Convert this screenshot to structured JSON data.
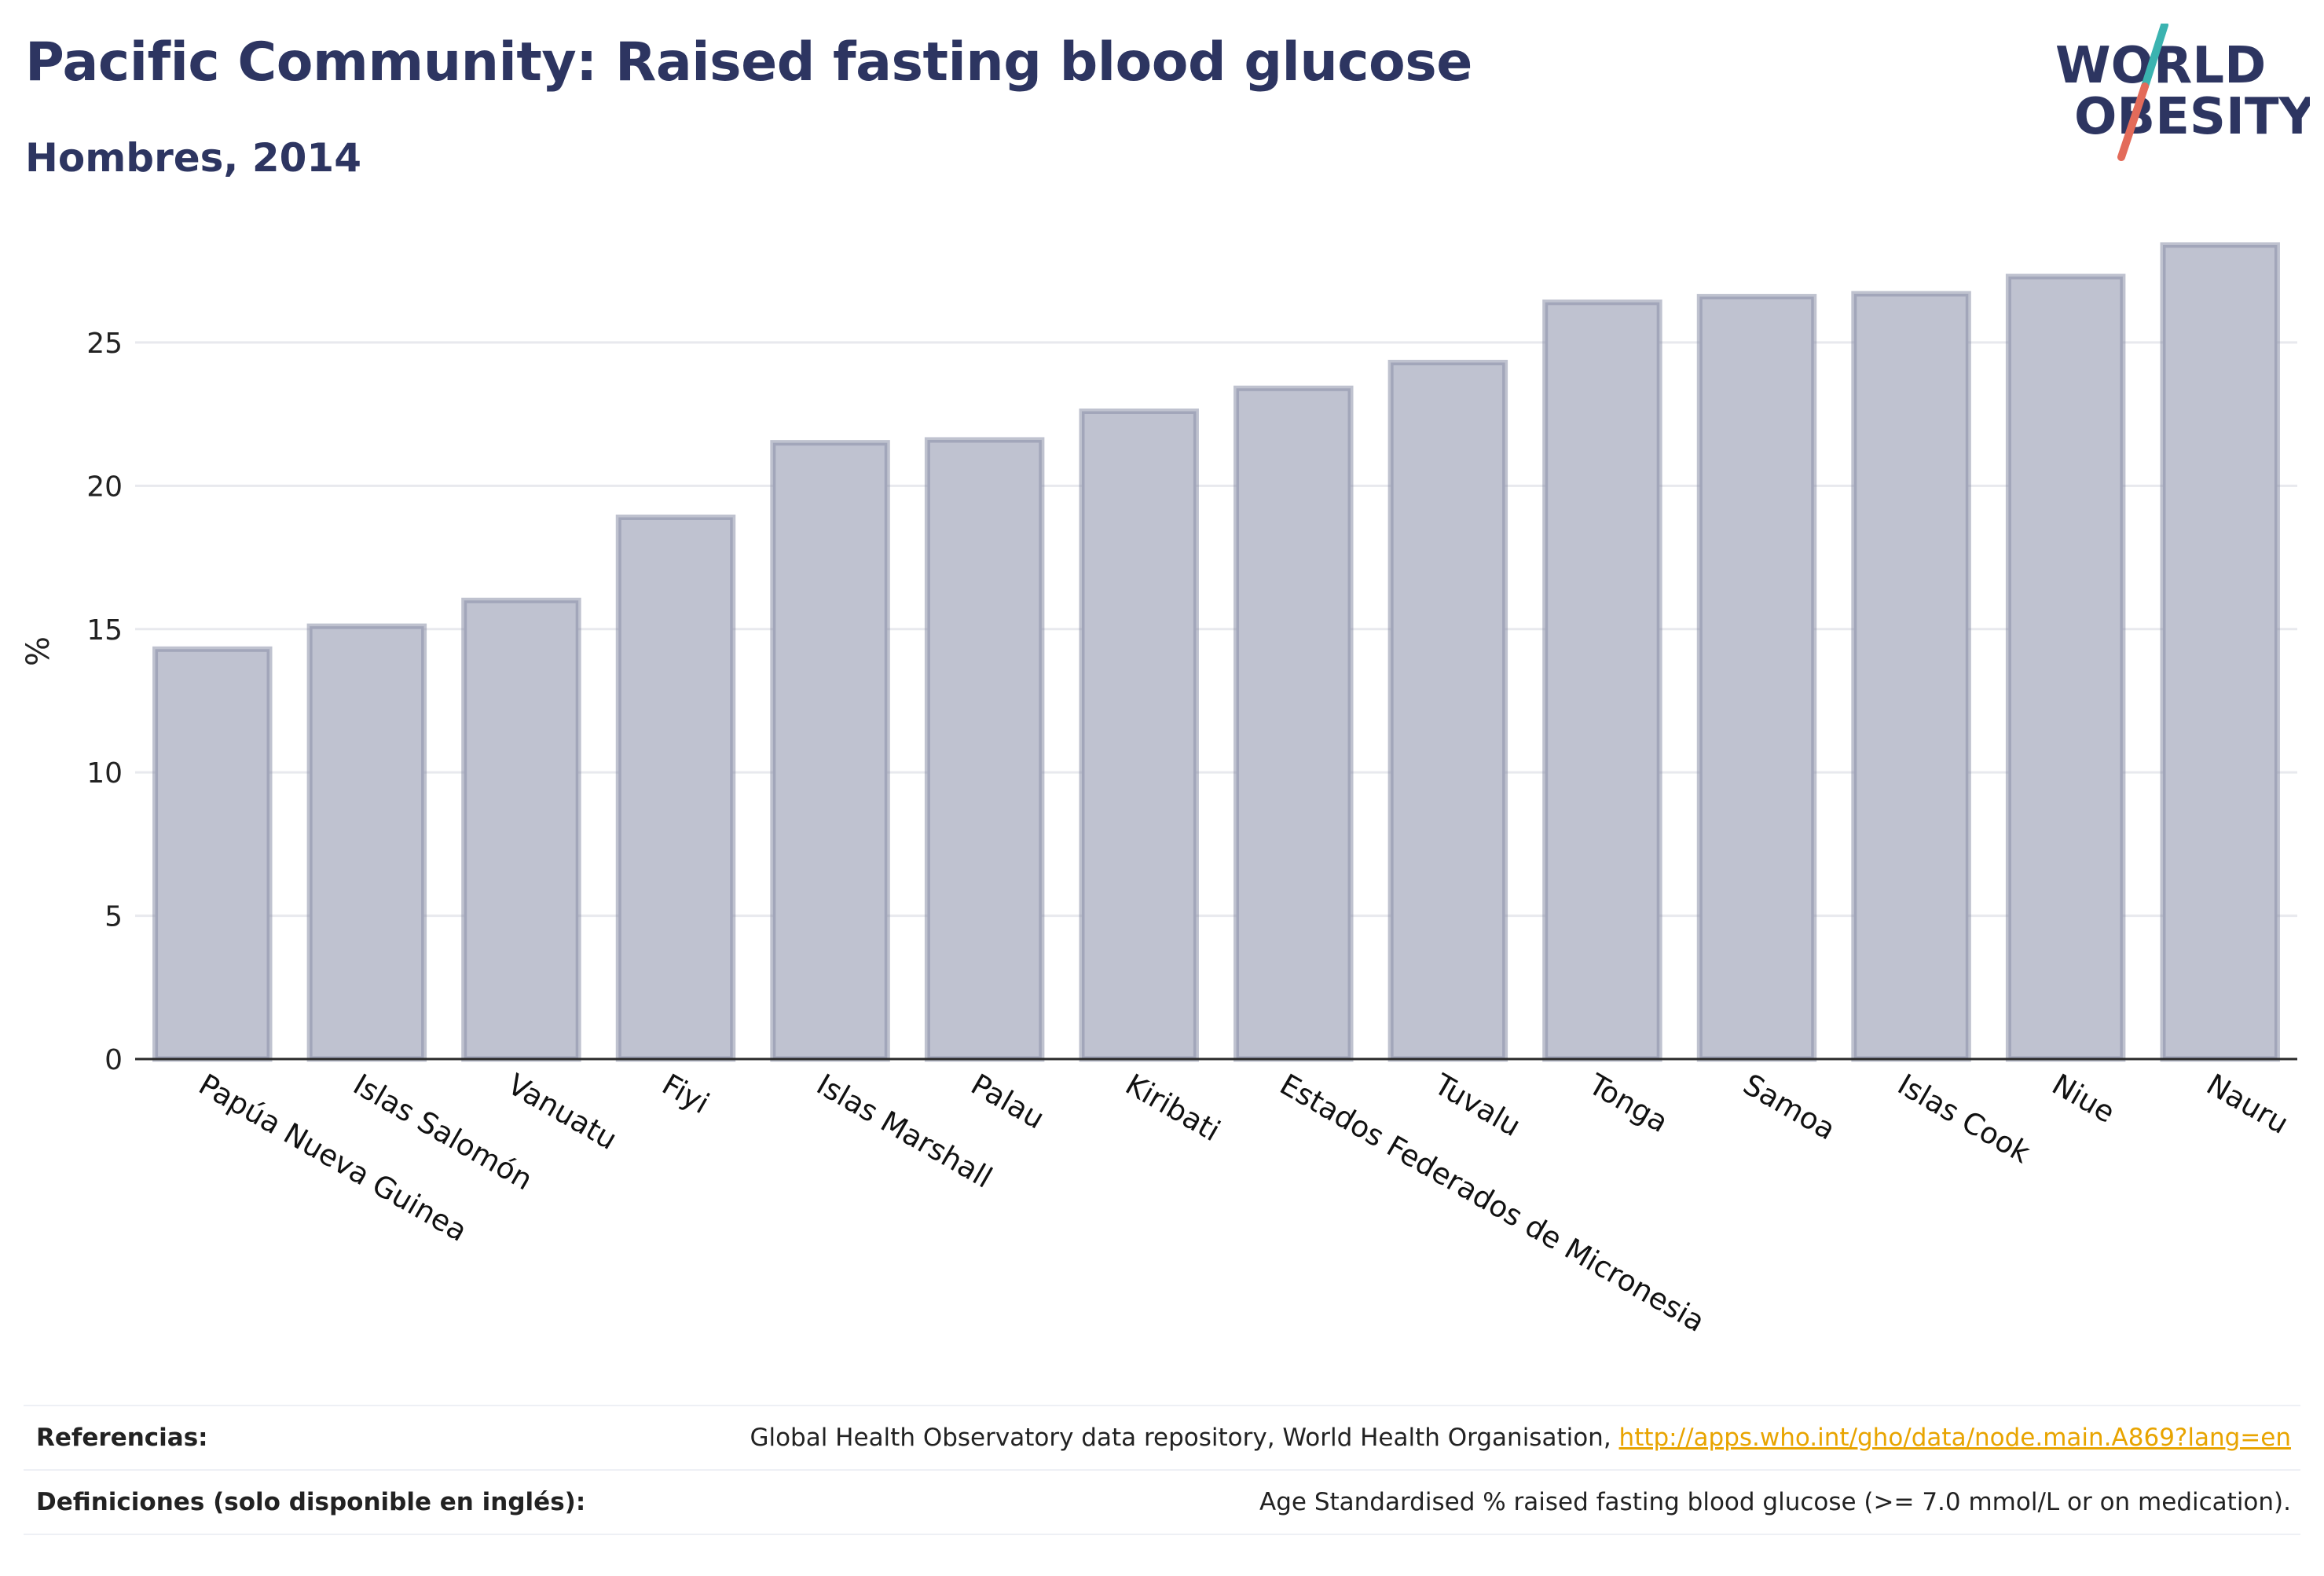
{
  "header": {
    "title": "Pacific Community: Raised fasting blood glucose",
    "subtitle": "Hombres, 2014"
  },
  "logo": {
    "line1": "WORLD",
    "line2": "OBESITY",
    "colors": {
      "text": "#2d3561",
      "slash_top": "#3bb3b0",
      "slash_bottom": "#e36b5a"
    }
  },
  "colors": {
    "bar_fill": "#bfc2d0",
    "bar_stroke": "#8a8fa8",
    "text": "#2d3561",
    "grid": "#e8e9ee",
    "link": "#e8a400"
  },
  "chart_data": {
    "type": "bar",
    "categories": [
      "Papúa Nueva Guinea",
      "Islas Salomón",
      "Vanuatu",
      "Fiyi",
      "Islas Marshall",
      "Palau",
      "Kiribati",
      "Estados Federados de Micronesia",
      "Tuvalu",
      "Tonga",
      "Samoa",
      "Islas Cook",
      "Niue",
      "Nauru"
    ],
    "values": [
      14.3,
      15.1,
      16.0,
      18.9,
      21.5,
      21.6,
      22.6,
      23.4,
      24.3,
      26.4,
      26.6,
      26.7,
      27.3,
      28.4
    ],
    "ylabel": "%",
    "yticks": [
      0,
      5,
      10,
      15,
      20,
      25
    ],
    "ylim": [
      0,
      29
    ],
    "grid": true
  },
  "footer": {
    "references_label": "Referencias:",
    "references_text": "Global Health Observatory data repository, World Health Organisation, ",
    "references_link": "http://apps.who.int/gho/data/node.main.A869?lang=en",
    "definitions_label": "Definiciones (solo disponible en inglés):",
    "definitions_text": "Age Standardised % raised fasting blood glucose (>= 7.0 mmol/L or on medication)."
  }
}
